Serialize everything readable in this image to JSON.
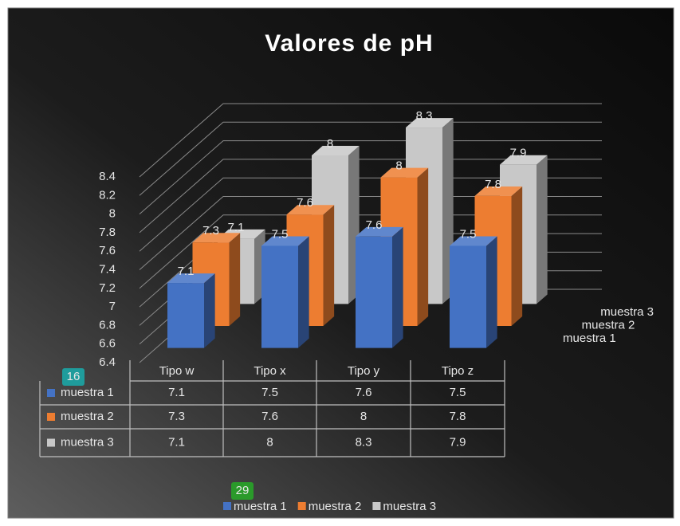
{
  "chart_data": {
    "type": "bar3d",
    "title": "Valores de pH",
    "categories": [
      "Tipo w",
      "Tipo x",
      "Tipo y",
      "Tipo z"
    ],
    "series": [
      {
        "name": "muestra 1",
        "color": "#4472c4",
        "values": [
          7.1,
          7.5,
          7.6,
          7.5
        ]
      },
      {
        "name": "muestra 2",
        "color": "#ed7d31",
        "values": [
          7.3,
          7.6,
          8,
          7.8
        ]
      },
      {
        "name": "muestra 3",
        "color": "#c8c8c8",
        "values": [
          7.1,
          8,
          8.3,
          7.9
        ]
      }
    ],
    "ylim": [
      6.4,
      8.4
    ],
    "yticks": [
      6.4,
      6.6,
      6.8,
      7,
      7.2,
      7.4,
      7.6,
      7.8,
      8,
      8.2,
      8.4
    ],
    "grid": true,
    "data_table": true,
    "legend": "bottom",
    "annotations": [
      "16",
      "29"
    ]
  }
}
